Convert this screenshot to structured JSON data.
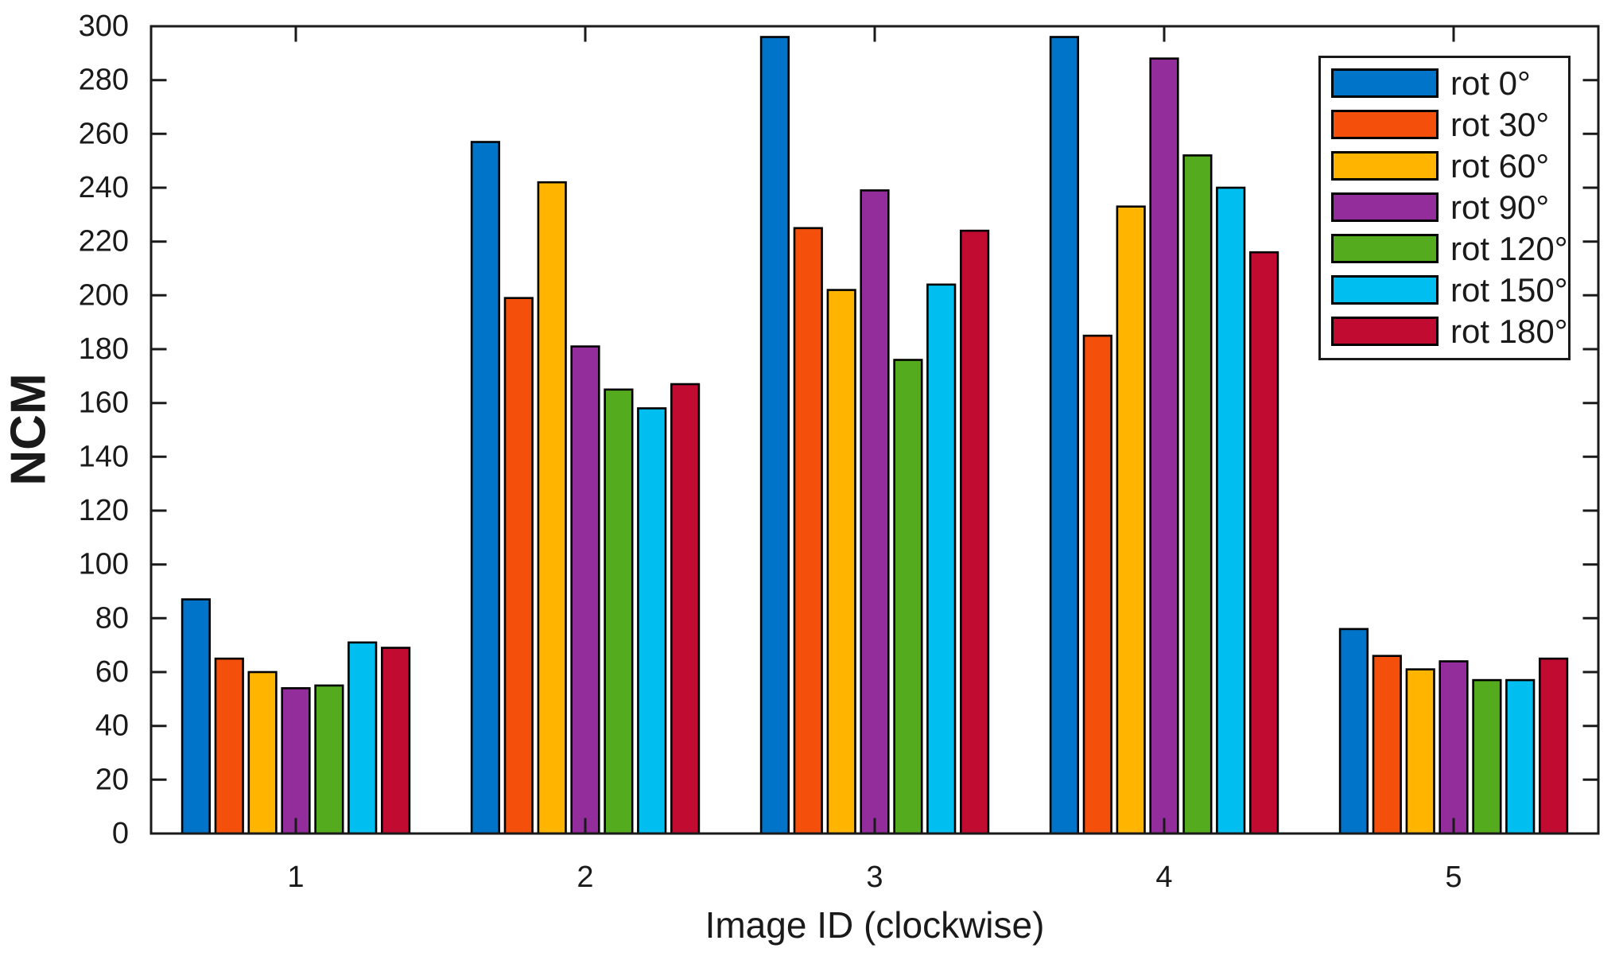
{
  "chart_data": {
    "type": "bar",
    "title": "",
    "xlabel": "Image ID (clockwise)",
    "ylabel": "NCM",
    "categories": [
      "1",
      "2",
      "3",
      "4",
      "5"
    ],
    "series": [
      {
        "name": "rot 0°",
        "color": "#0074C9",
        "values": [
          87,
          257,
          296,
          296,
          76
        ]
      },
      {
        "name": "rot 30°",
        "color": "#F4500C",
        "values": [
          65,
          199,
          225,
          185,
          66
        ]
      },
      {
        "name": "rot 60°",
        "color": "#FFB400",
        "values": [
          60,
          242,
          202,
          233,
          61
        ]
      },
      {
        "name": "rot 90°",
        "color": "#922D9B",
        "values": [
          54,
          181,
          239,
          288,
          64
        ]
      },
      {
        "name": "rot 120°",
        "color": "#54AB1E",
        "values": [
          55,
          165,
          176,
          252,
          57
        ]
      },
      {
        "name": "rot 150°",
        "color": "#00BEF0",
        "values": [
          71,
          158,
          204,
          240,
          57
        ]
      },
      {
        "name": "rot 180°",
        "color": "#C10B31",
        "values": [
          69,
          167,
          224,
          216,
          65
        ]
      }
    ],
    "ylim": [
      0,
      300
    ],
    "ytick_step": 20,
    "grid": false,
    "legend_position": "top-right",
    "legend_entries": [
      "rot 0°",
      "rot 30°",
      "rot 60°",
      "rot 90°",
      "rot 120°",
      "rot 150°",
      "rot 180°"
    ],
    "axis_color": "#1a1a1a",
    "bar_edge_color": "#000000"
  }
}
